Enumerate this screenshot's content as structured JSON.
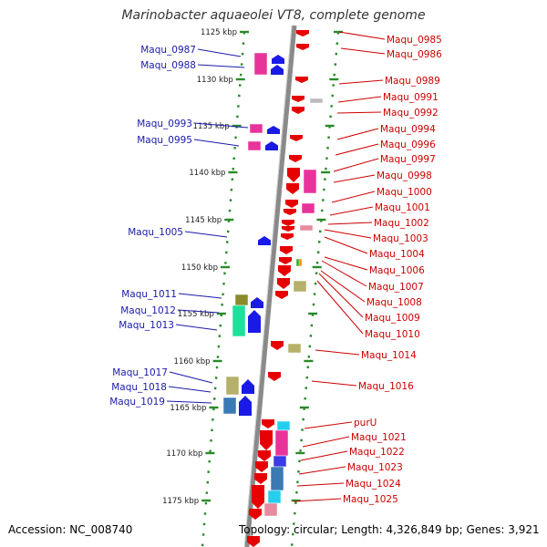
{
  "title": "Marinobacter aquaeolei VT8, complete genome",
  "accession": "Accession: NC_008740",
  "topology": "Topology: circular; Length: 4,326,849 bp; Genes: 3,921",
  "colors": {
    "left_labels": "#1a1aaa",
    "right_labels": "#cc0000",
    "ruler_dots": "#2a8a2a",
    "backbone": "#8a8a8a",
    "plus_arrow": "#1a1ae6",
    "minus_arrow": "#e60000",
    "magenta_block": "#e8339a",
    "olive_block": "#b5b06a",
    "green_block": "#1fe09a",
    "steel_block": "#3a7ab5",
    "cyan_block": "#22d0ee"
  },
  "ticks": [
    "1125 kbp",
    "1130 kbp",
    "1135 kbp",
    "1140 kbp",
    "1145 kbp",
    "1150 kbp",
    "1155 kbp",
    "1160 kbp",
    "1165 kbp",
    "1170 kbp",
    "1175 kbp"
  ],
  "left_genes": [
    "Maqu_0987",
    "Maqu_0988",
    "Maqu_0993",
    "Maqu_0995",
    "Maqu_1005",
    "Maqu_1011",
    "Maqu_1012",
    "Maqu_1013",
    "Maqu_1017",
    "Maqu_1018",
    "Maqu_1019"
  ],
  "right_genes": [
    "Maqu_0985",
    "Maqu_0986",
    "Maqu_0989",
    "Maqu_0991",
    "Maqu_0992",
    "Maqu_0994",
    "Maqu_0996",
    "Maqu_0997",
    "Maqu_0998",
    "Maqu_1000",
    "Maqu_1001",
    "Maqu_1002",
    "Maqu_1003",
    "Maqu_1004",
    "Maqu_1006",
    "Maqu_1007",
    "Maqu_1008",
    "Maqu_1009",
    "Maqu_1010",
    "Maqu_1014",
    "Maqu_1016",
    "purU",
    "Maqu_1021",
    "Maqu_1022",
    "Maqu_1023",
    "Maqu_1024",
    "Maqu_1025"
  ]
}
